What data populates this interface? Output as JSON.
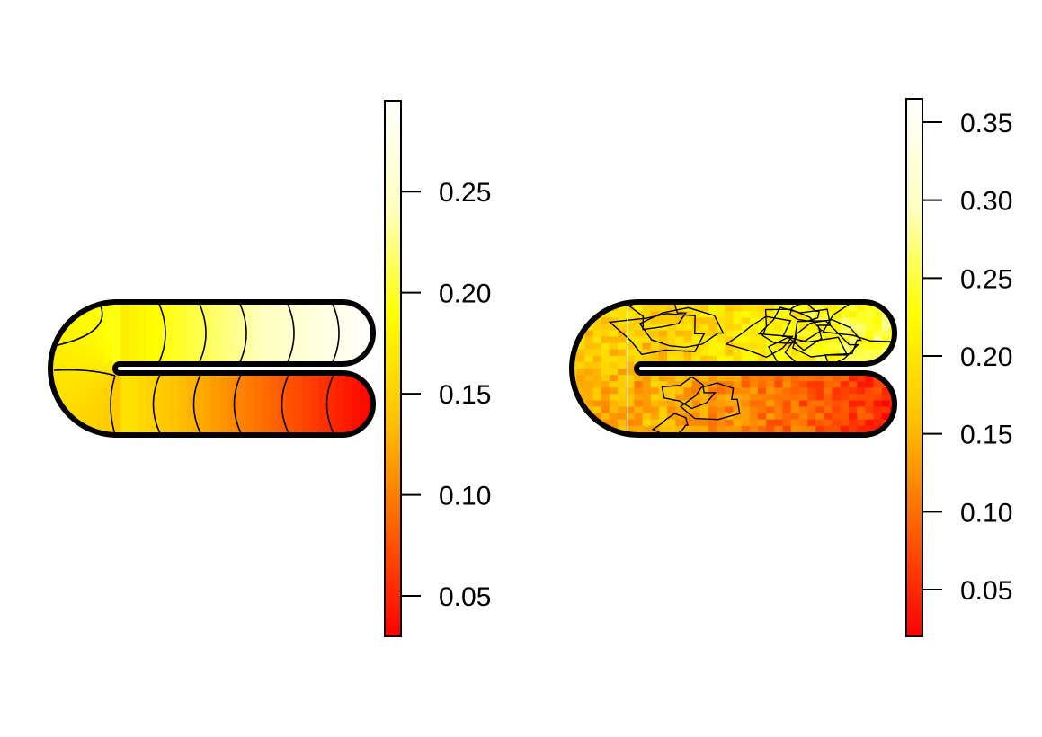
{
  "colors": {
    "palette": [
      "#ff0000",
      "#ff6000",
      "#ffc000",
      "#ffff00",
      "#ffffc0",
      "#ffffff"
    ],
    "outline": "#000000",
    "contour": "#000000",
    "background": "#ffffff"
  },
  "chart_data": [
    {
      "type": "heatmap",
      "subtype": "filled contour on U-shaped domain with color legend",
      "title": "",
      "legend": {
        "placement": "right",
        "range": [
          0.03,
          0.295
        ],
        "ticks": [
          0.05,
          0.1,
          0.15,
          0.2,
          0.25
        ],
        "tick_labels": [
          "0.05",
          "0.10",
          "0.15",
          "0.20",
          "0.25"
        ]
      },
      "field": {
        "description": "smooth gradient: low (red) at end of lower arm, increasing around the bend to high (white) at end of upper arm",
        "lower_arm_end": 0.03,
        "bend": 0.17,
        "upper_arm_end": 0.295,
        "contours": "smooth, roughly vertical"
      }
    },
    {
      "type": "heatmap",
      "subtype": "filled contour on U-shaped domain with color legend",
      "title": "",
      "legend": {
        "placement": "right",
        "range": [
          0.02,
          0.365
        ],
        "ticks": [
          0.05,
          0.1,
          0.15,
          0.2,
          0.25,
          0.3,
          0.35
        ],
        "tick_labels": [
          "0.05",
          "0.10",
          "0.15",
          "0.20",
          "0.25",
          "0.30",
          "0.35"
        ]
      },
      "field": {
        "description": "noisy version of the same gradient: red on lower arm, orange near bend, yellow patches on upper arm",
        "lower_arm_end": 0.05,
        "bend": 0.16,
        "upper_arm_end": 0.26,
        "contours": "irregular, noisy"
      }
    }
  ]
}
